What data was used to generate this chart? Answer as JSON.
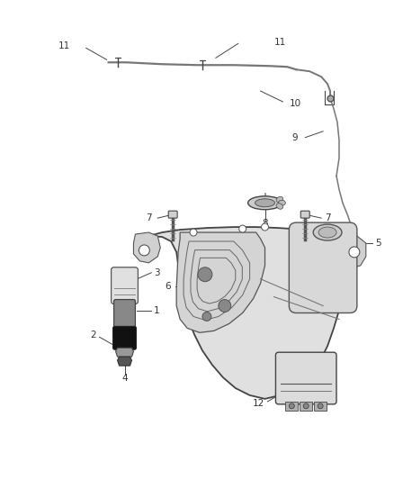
{
  "bg_color": "#ffffff",
  "line_color": "#444444",
  "fill_light": "#e8e8e8",
  "fill_med": "#cccccc",
  "fill_dark": "#999999",
  "fill_darker": "#666666",
  "figsize": [
    4.38,
    5.33
  ],
  "dpi": 100,
  "label_color": "#333333",
  "label_fs": 7.5,
  "leader_lw": 0.7,
  "part_lw": 1.0,
  "tube_lw": 1.1
}
